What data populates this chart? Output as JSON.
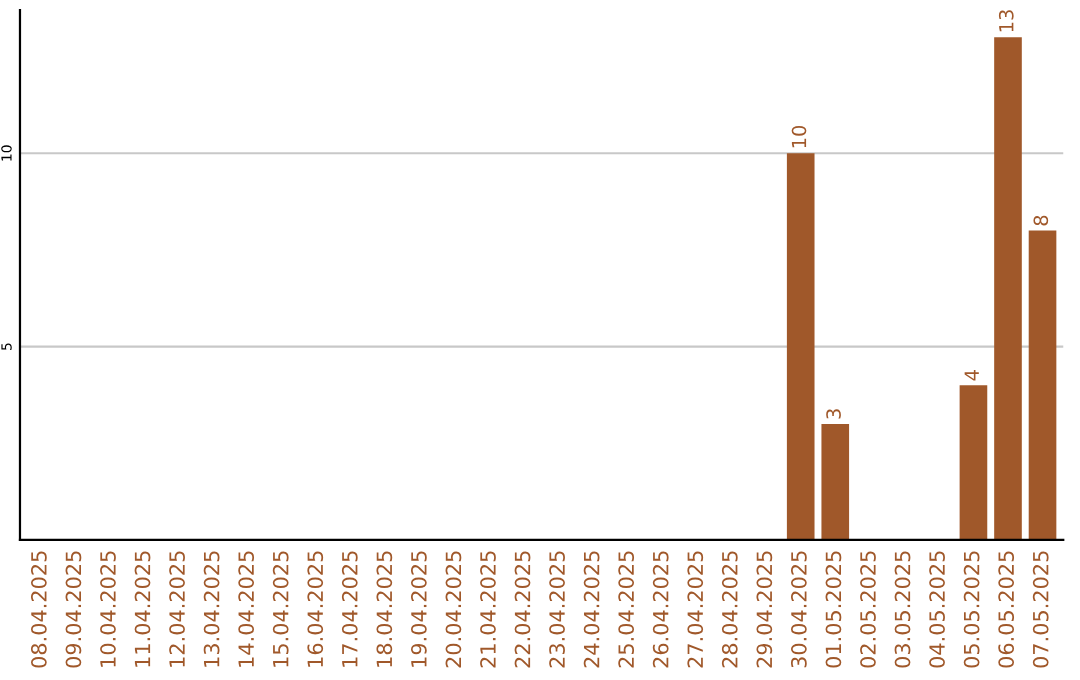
{
  "chart_data": {
    "type": "bar",
    "categories": [
      "08.04.2025",
      "09.04.2025",
      "10.04.2025",
      "11.04.2025",
      "12.04.2025",
      "13.04.2025",
      "14.04.2025",
      "15.04.2025",
      "16.04.2025",
      "17.04.2025",
      "18.04.2025",
      "19.04.2025",
      "20.04.2025",
      "21.04.2025",
      "22.04.2025",
      "23.04.2025",
      "24.04.2025",
      "25.04.2025",
      "26.04.2025",
      "27.04.2025",
      "28.04.2025",
      "29.04.2025",
      "30.04.2025",
      "01.05.2025",
      "02.05.2025",
      "03.05.2025",
      "04.05.2025",
      "05.05.2025",
      "06.05.2025",
      "07.05.2025"
    ],
    "values": [
      0,
      0,
      0,
      0,
      0,
      0,
      0,
      0,
      0,
      0,
      0,
      0,
      0,
      0,
      0,
      0,
      0,
      0,
      0,
      0,
      0,
      0,
      10,
      3,
      0,
      0,
      0,
      4,
      13,
      8
    ],
    "value_labels": [
      null,
      null,
      null,
      null,
      null,
      null,
      null,
      null,
      null,
      null,
      null,
      null,
      null,
      null,
      null,
      null,
      null,
      null,
      null,
      null,
      null,
      null,
      "10",
      "3",
      null,
      null,
      null,
      "4",
      "13",
      "8"
    ],
    "color": "#a0582a",
    "ylim": [
      0,
      13.7
    ],
    "yticks": [
      5,
      10
    ],
    "grid": "y"
  }
}
